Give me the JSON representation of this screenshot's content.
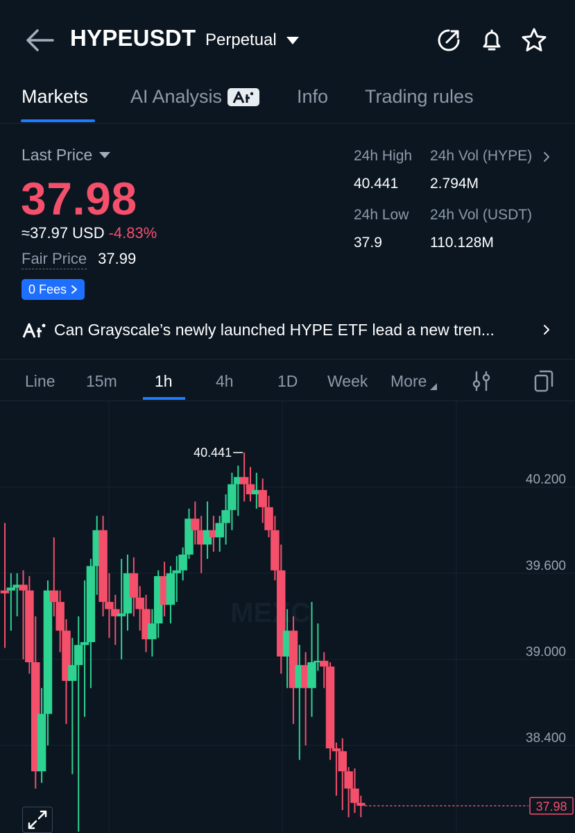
{
  "header": {
    "symbol": "HYPEUSDT",
    "contract_type": "Perpetual",
    "icons": [
      "back-arrow-icon",
      "share-icon",
      "bell-icon",
      "star-icon"
    ]
  },
  "tabs": [
    {
      "label": "Markets",
      "active": true
    },
    {
      "label": "AI Analysis",
      "badge": "AI",
      "active": false
    },
    {
      "label": "Info",
      "active": false
    },
    {
      "label": "Trading rules",
      "active": false
    }
  ],
  "price": {
    "label": "Last Price",
    "last": "37.98",
    "usd": "≈37.97",
    "usd_unit": "USD",
    "change": "-4.83%",
    "fair_label": "Fair Price",
    "fair_value": "37.99",
    "fees_label": "0 Fees"
  },
  "stats": {
    "high_label": "24h High",
    "high_value": "40.441",
    "vol_hype_label": "24h Vol (HYPE)",
    "vol_hype_value": "2.794M",
    "low_label": "24h Low",
    "low_value": "37.9",
    "vol_usdt_label": "24h Vol  (USDT)",
    "vol_usdt_value": "110.128M"
  },
  "news": {
    "text": "Can Grayscale’s newly launched HYPE ETF lead a new tren..."
  },
  "intervals": [
    {
      "label": "Line",
      "active": false
    },
    {
      "label": "15m",
      "active": false
    },
    {
      "label": "1h",
      "active": true
    },
    {
      "label": "4h",
      "active": false
    },
    {
      "label": "1D",
      "active": false
    },
    {
      "label": "Week",
      "active": false
    },
    {
      "label": "More",
      "active": false
    }
  ],
  "colors": {
    "up": "#2ed392",
    "down": "#f4506b",
    "accent": "#1f7bff",
    "background": "#0b1621"
  },
  "chart_data": {
    "type": "candlestick",
    "interval": "1h",
    "y_ticks": [
      "40.200",
      "39.600",
      "39.000",
      "38.400"
    ],
    "ylim": [
      37.8,
      40.75
    ],
    "high_marker": "40.441",
    "last_marker": "37.98",
    "watermark": "MEXC",
    "candles": [
      {
        "o": 39.48,
        "h": 39.95,
        "l": 39.08,
        "c": 39.46
      },
      {
        "o": 39.48,
        "h": 39.6,
        "l": 39.2,
        "c": 39.5
      },
      {
        "o": 39.5,
        "h": 39.6,
        "l": 39.3,
        "c": 39.52
      },
      {
        "o": 39.52,
        "h": 39.62,
        "l": 39.0,
        "c": 39.48
      },
      {
        "o": 39.48,
        "h": 39.58,
        "l": 38.9,
        "c": 38.98
      },
      {
        "o": 38.98,
        "h": 39.3,
        "l": 38.1,
        "c": 38.22
      },
      {
        "o": 38.22,
        "h": 38.8,
        "l": 38.14,
        "c": 38.62
      },
      {
        "o": 38.62,
        "h": 39.55,
        "l": 38.4,
        "c": 39.48
      },
      {
        "o": 39.48,
        "h": 39.85,
        "l": 39.3,
        "c": 39.4
      },
      {
        "o": 39.4,
        "h": 39.48,
        "l": 39.05,
        "c": 39.2
      },
      {
        "o": 39.2,
        "h": 39.28,
        "l": 38.55,
        "c": 38.85
      },
      {
        "o": 38.85,
        "h": 39.15,
        "l": 38.2,
        "c": 38.96
      },
      {
        "o": 38.96,
        "h": 39.3,
        "l": 37.8,
        "c": 39.1
      },
      {
        "o": 39.1,
        "h": 39.55,
        "l": 38.6,
        "c": 39.12
      },
      {
        "o": 39.12,
        "h": 39.7,
        "l": 38.8,
        "c": 39.65
      },
      {
        "o": 39.65,
        "h": 40.0,
        "l": 39.45,
        "c": 39.9
      },
      {
        "o": 39.9,
        "h": 40.0,
        "l": 39.3,
        "c": 39.4
      },
      {
        "o": 39.4,
        "h": 39.6,
        "l": 39.15,
        "c": 39.35
      },
      {
        "o": 39.35,
        "h": 39.45,
        "l": 39.1,
        "c": 39.3
      },
      {
        "o": 39.3,
        "h": 39.7,
        "l": 39.0,
        "c": 39.32
      },
      {
        "o": 39.32,
        "h": 39.73,
        "l": 39.2,
        "c": 39.6
      },
      {
        "o": 39.6,
        "h": 39.71,
        "l": 39.3,
        "c": 39.43
      },
      {
        "o": 39.43,
        "h": 39.51,
        "l": 39.2,
        "c": 39.35
      },
      {
        "o": 39.35,
        "h": 39.45,
        "l": 39.05,
        "c": 39.14
      },
      {
        "o": 39.14,
        "h": 39.35,
        "l": 39.02,
        "c": 39.25
      },
      {
        "o": 39.25,
        "h": 39.62,
        "l": 39.15,
        "c": 39.58
      },
      {
        "o": 39.58,
        "h": 39.68,
        "l": 39.3,
        "c": 39.38
      },
      {
        "o": 39.38,
        "h": 39.65,
        "l": 39.25,
        "c": 39.6
      },
      {
        "o": 39.6,
        "h": 39.72,
        "l": 39.4,
        "c": 39.62
      },
      {
        "o": 39.62,
        "h": 39.78,
        "l": 39.55,
        "c": 39.73
      },
      {
        "o": 39.73,
        "h": 40.05,
        "l": 39.7,
        "c": 39.98
      },
      {
        "o": 39.98,
        "h": 40.1,
        "l": 39.8,
        "c": 39.9
      },
      {
        "o": 39.9,
        "h": 40.0,
        "l": 39.6,
        "c": 39.8
      },
      {
        "o": 39.8,
        "h": 40.1,
        "l": 39.7,
        "c": 39.9
      },
      {
        "o": 39.9,
        "h": 40.0,
        "l": 39.75,
        "c": 39.85
      },
      {
        "o": 39.85,
        "h": 40.0,
        "l": 39.75,
        "c": 39.95
      },
      {
        "o": 39.95,
        "h": 40.15,
        "l": 39.8,
        "c": 40.04
      },
      {
        "o": 40.04,
        "h": 40.3,
        "l": 39.9,
        "c": 40.22
      },
      {
        "o": 40.22,
        "h": 40.35,
        "l": 40.0,
        "c": 40.27
      },
      {
        "o": 40.27,
        "h": 40.441,
        "l": 40.1,
        "c": 40.22
      },
      {
        "o": 40.22,
        "h": 40.34,
        "l": 40.1,
        "c": 40.15
      },
      {
        "o": 40.15,
        "h": 40.3,
        "l": 40.05,
        "c": 40.18
      },
      {
        "o": 40.18,
        "h": 40.26,
        "l": 39.95,
        "c": 40.06
      },
      {
        "o": 40.06,
        "h": 40.14,
        "l": 39.85,
        "c": 39.9
      },
      {
        "o": 39.9,
        "h": 40.0,
        "l": 39.55,
        "c": 39.62
      },
      {
        "o": 39.62,
        "h": 39.8,
        "l": 38.9,
        "c": 39.02
      },
      {
        "o": 39.02,
        "h": 39.35,
        "l": 38.8,
        "c": 39.2
      },
      {
        "o": 39.2,
        "h": 39.3,
        "l": 38.55,
        "c": 38.8
      },
      {
        "o": 38.8,
        "h": 39.1,
        "l": 38.3,
        "c": 38.96
      },
      {
        "o": 38.96,
        "h": 39.05,
        "l": 38.4,
        "c": 38.8
      },
      {
        "o": 38.8,
        "h": 39.4,
        "l": 38.6,
        "c": 38.98
      },
      {
        "o": 38.98,
        "h": 39.25,
        "l": 38.92,
        "c": 38.99
      },
      {
        "o": 38.99,
        "h": 39.05,
        "l": 38.8,
        "c": 38.95
      },
      {
        "o": 38.95,
        "h": 38.98,
        "l": 38.3,
        "c": 38.38
      },
      {
        "o": 38.38,
        "h": 38.42,
        "l": 38.05,
        "c": 38.36
      },
      {
        "o": 38.36,
        "h": 38.45,
        "l": 37.95,
        "c": 38.22
      },
      {
        "o": 38.22,
        "h": 38.25,
        "l": 37.9,
        "c": 38.1
      },
      {
        "o": 38.1,
        "h": 38.24,
        "l": 37.93,
        "c": 38.0
      },
      {
        "o": 38.0,
        "h": 38.05,
        "l": 37.9,
        "c": 37.98
      }
    ]
  }
}
